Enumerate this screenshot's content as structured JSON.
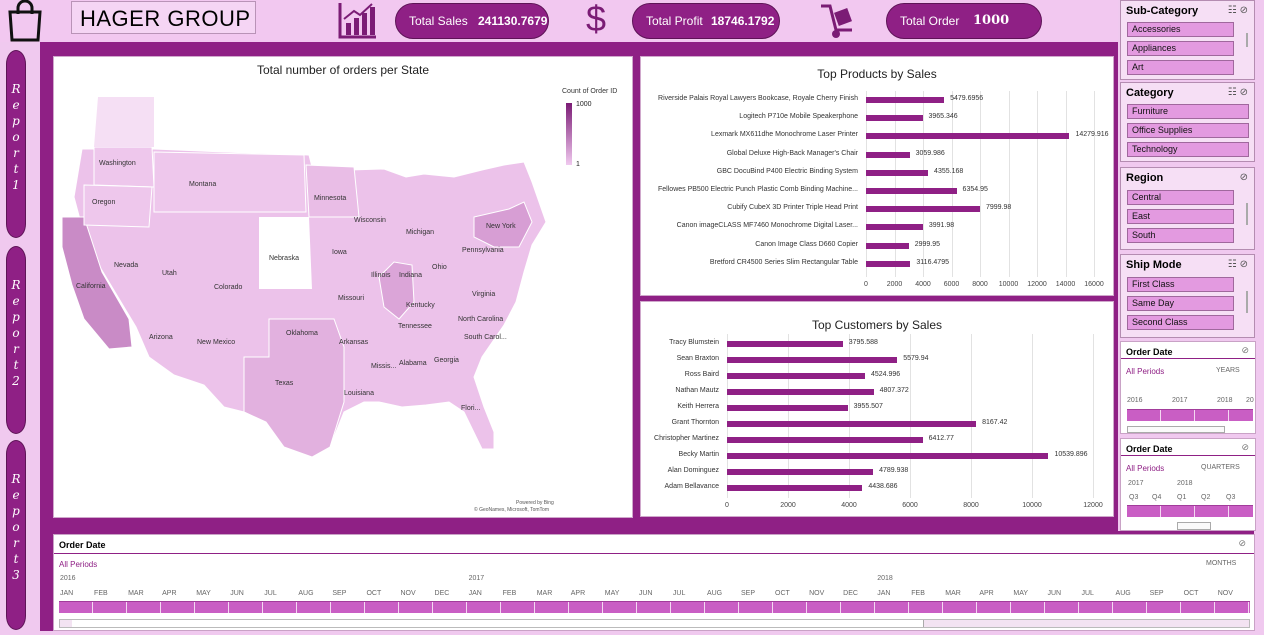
{
  "header": {
    "brand": "HAGER GROUP",
    "kpis": [
      {
        "label": "Total Sales",
        "value": "241130.7679"
      },
      {
        "label": "Total Profit",
        "value": "18746.1792"
      },
      {
        "label": "Total Order",
        "value": "1000"
      }
    ]
  },
  "nav": {
    "reports": [
      {
        "letters": [
          "R",
          "e",
          "p",
          "o",
          "r",
          "t",
          "1"
        ]
      },
      {
        "letters": [
          "R",
          "e",
          "p",
          "o",
          "r",
          "t",
          "2"
        ]
      },
      {
        "letters": [
          "R",
          "e",
          "p",
          "o",
          "r",
          "t",
          "3"
        ]
      }
    ]
  },
  "map": {
    "title": "Total number of orders per State",
    "legend_title": "Count of Order ID",
    "legend_max": "1000",
    "legend_min": "1",
    "credit1": "Powered by Bing",
    "credit2": "© GeoNames, Microsoft, TomTom",
    "states": [
      "Washington",
      "Montana",
      "Oregon",
      "Minnesota",
      "Wisconsin",
      "Michigan",
      "New York",
      "California",
      "Nevada",
      "Utah",
      "Colorado",
      "Nebraska",
      "Iowa",
      "Illinois",
      "Indiana",
      "Ohio",
      "Pennsylvania",
      "Kentucky",
      "Virginia",
      "Missouri",
      "Arizona",
      "New Mexico",
      "Oklahoma",
      "Tennessee",
      "North Carolina",
      "Arkansas",
      "South Carol...",
      "Alabama",
      "Georgia",
      "Missis...",
      "Texas",
      "Louisiana",
      "Flori..."
    ]
  },
  "top_products": {
    "title": "Top Products by Sales",
    "chart_data": {
      "type": "bar",
      "orientation": "horizontal",
      "categories": [
        "Riverside Palais Royal Lawyers Bookcase, Royale Cherry Finish",
        "Logitech P710e Mobile Speakerphone",
        "Lexmark MX611dhe Monochrome Laser Printer",
        "Global Deluxe High-Back Manager's Chair",
        "GBC DocuBind P400 Electric Binding System",
        "Fellowes PB500 Electric Punch Plastic Comb Binding Machine...",
        "Cubify CubeX 3D Printer Triple Head Print",
        "Canon imageCLASS MF7460 Monochrome Digital Laser...",
        "Canon Image Class D660 Copier",
        "Bretford CR4500 Series Slim Rectangular Table"
      ],
      "values": [
        5479.6956,
        3965.346,
        14279.916,
        3059.986,
        4355.168,
        6354.95,
        7999.98,
        3991.98,
        2999.95,
        3116.4795
      ],
      "value_labels": [
        "5479.6956",
        "3965.346",
        "14279.916",
        "3059.986",
        "4355.168",
        "6354.95",
        "7999.98",
        "3991.98",
        "2999.95",
        "3116.4795"
      ],
      "xlim": [
        0,
        16000
      ],
      "ticks": [
        "0",
        "2000",
        "4000",
        "6000",
        "8000",
        "10000",
        "12000",
        "14000",
        "16000"
      ]
    }
  },
  "top_customers": {
    "title": "Top Customers by Sales",
    "chart_data": {
      "type": "bar",
      "orientation": "horizontal",
      "categories": [
        "Tracy Blumstein",
        "Sean Braxton",
        "Ross Baird",
        "Nathan Mautz",
        "Keith Herrera",
        "Grant Thornton",
        "Christopher Martinez",
        "Becky Martin",
        "Alan Dominguez",
        "Adam Bellavance"
      ],
      "values": [
        3795.588,
        5579.94,
        4524.996,
        4807.372,
        3955.507,
        8167.42,
        6412.77,
        10539.896,
        4789.938,
        4438.686
      ],
      "value_labels": [
        "3795.588",
        "5579.94",
        "4524.996",
        "4807.372",
        "3955.507",
        "8167.42",
        "6412.77",
        "10539.896",
        "4789.938",
        "4438.686"
      ],
      "xlim": [
        0,
        12000
      ],
      "ticks": [
        "0",
        "2000",
        "4000",
        "6000",
        "8000",
        "10000",
        "12000"
      ]
    }
  },
  "slicers": [
    {
      "title": "Sub-Category",
      "items": [
        "Accessories",
        "Appliances",
        "Art"
      ]
    },
    {
      "title": "Category",
      "items": [
        "Furniture",
        "Office Supplies",
        "Technology"
      ]
    },
    {
      "title": "Region",
      "items": [
        "Central",
        "East",
        "South"
      ]
    },
    {
      "title": "Ship Mode",
      "items": [
        "First Class",
        "Same Day",
        "Second Class"
      ]
    }
  ],
  "timeline_years": {
    "title": "Order Date",
    "periods": "All Periods",
    "level": "YEARS",
    "labels": [
      "2016",
      "2017",
      "2018",
      "20"
    ]
  },
  "timeline_quarters": {
    "title": "Order Date",
    "periods": "All Periods",
    "level": "QUARTERS",
    "years": [
      "2017",
      "2018"
    ],
    "labels": [
      "Q3",
      "Q4",
      "Q1",
      "Q2",
      "Q3"
    ]
  },
  "timeline_months": {
    "title": "Order Date",
    "periods": "All Periods",
    "level": "MONTHS",
    "years": [
      "2016",
      "2017",
      "2018"
    ],
    "months": [
      "JAN",
      "FEB",
      "MAR",
      "APR",
      "MAY",
      "JUN",
      "JUL",
      "AUG",
      "SEP",
      "OCT",
      "NOV",
      "DEC",
      "JAN",
      "FEB",
      "MAR",
      "APR",
      "MAY",
      "JUN",
      "JUL",
      "AUG",
      "SEP",
      "OCT",
      "NOV",
      "DEC",
      "JAN",
      "FEB",
      "MAR",
      "APR",
      "MAY",
      "JUN",
      "JUL",
      "AUG",
      "SEP",
      "OCT",
      "NOV"
    ]
  },
  "colors": {
    "accent": "#8f2085",
    "background": "#f0c9ef",
    "bar": "#8f2085"
  }
}
